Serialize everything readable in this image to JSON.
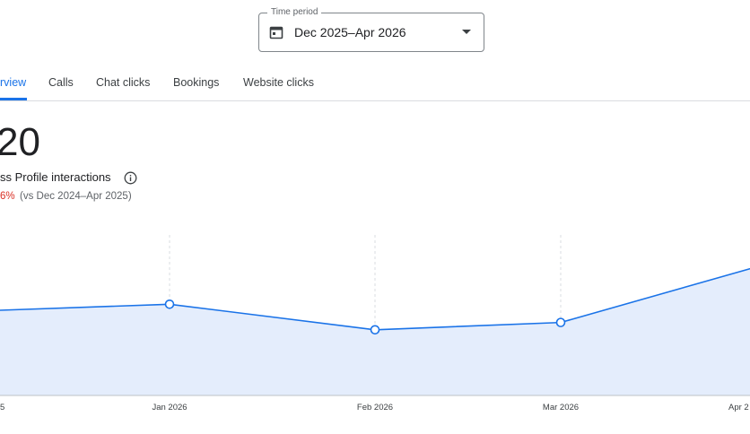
{
  "time_period": {
    "label": "Time period",
    "value": "Dec 2025–Apr 2026"
  },
  "tabs": [
    "rview",
    "Calls",
    "Chat clicks",
    "Bookings",
    "Website clicks"
  ],
  "summary": {
    "total": 20,
    "metric": "ss Profile interactions",
    "change": "6%",
    "comparison": "(vs Dec 2024–Apr 2025)"
  },
  "chart": {
    "type": "line",
    "categories": [
      "5",
      "Jan 2026",
      "Feb 2026",
      "Mar 2026",
      "Apr 2"
    ],
    "values": [
      23,
      25,
      18,
      20,
      36
    ],
    "ylim": [
      0,
      44
    ],
    "color": "#1a73e8",
    "fill": "#e4edfc",
    "grid": true
  }
}
